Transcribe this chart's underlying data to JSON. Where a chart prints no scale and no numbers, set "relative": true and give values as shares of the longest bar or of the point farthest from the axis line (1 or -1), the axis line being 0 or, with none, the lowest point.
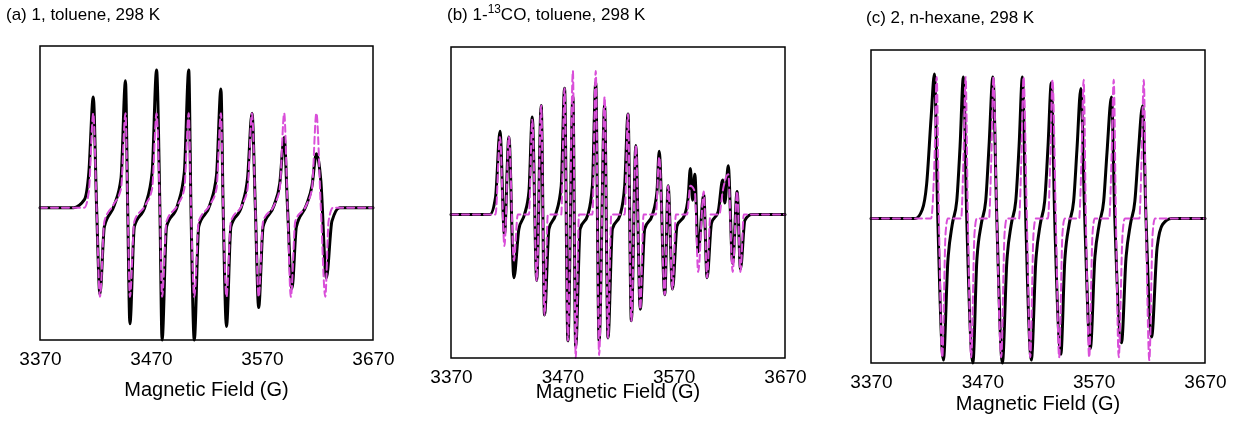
{
  "chart_data": [
    {
      "type": "line",
      "title": "(a) 1, toluene, 298 K",
      "xlabel": "Magnetic Field (G)",
      "relative": true,
      "xlim": [
        3370,
        3670
      ],
      "xticks": [
        3370,
        3470,
        3570,
        3670
      ],
      "tick_labels": "x",
      "series": [
        {
          "color": "#000000",
          "line_style": "solid",
          "x": [
            3370,
            3400,
            3410,
            3414,
            3418,
            3421,
            3424,
            3428,
            3437,
            3443,
            3447,
            3449,
            3451,
            3455,
            3465,
            3471,
            3475,
            3478,
            3480,
            3484,
            3494,
            3500,
            3504,
            3506,
            3509,
            3513,
            3523,
            3529,
            3533,
            3535,
            3538,
            3542,
            3552,
            3557,
            3561,
            3564,
            3567,
            3571,
            3581,
            3586,
            3590,
            3593,
            3597,
            3601,
            3610,
            3615,
            3619,
            3623,
            3628,
            3633,
            3640,
            3670
          ],
          "values": [
            0.49,
            0.49,
            0.52,
            0.62,
            0.9,
            0.49,
            0.17,
            0.42,
            0.5,
            0.6,
            0.96,
            0.49,
            0.06,
            0.42,
            0.5,
            0.62,
            1,
            0.49,
            0,
            0.42,
            0.5,
            0.62,
            1,
            0.49,
            0,
            0.42,
            0.5,
            0.61,
            0.93,
            0.49,
            0.05,
            0.42,
            0.5,
            0.6,
            0.84,
            0.49,
            0.12,
            0.42,
            0.5,
            0.58,
            0.75,
            0.49,
            0.19,
            0.42,
            0.5,
            0.57,
            0.69,
            0.59,
            0.23,
            0.44,
            0.49,
            0.49
          ]
        },
        {
          "color": "#d94fd9",
          "line_style": "dashed",
          "x": [
            3370,
            3410,
            3414,
            3418,
            3421,
            3424,
            3428,
            3436,
            3443,
            3447,
            3449,
            3451,
            3455,
            3465,
            3471,
            3475,
            3478,
            3480,
            3484,
            3494,
            3500,
            3504,
            3506,
            3509,
            3513,
            3523,
            3529,
            3533,
            3535,
            3538,
            3542,
            3552,
            3557,
            3561,
            3564,
            3567,
            3571,
            3581,
            3586,
            3590,
            3593,
            3596,
            3600,
            3610,
            3615,
            3619,
            3623,
            3627,
            3630,
            3634,
            3670
          ],
          "values": [
            0.49,
            0.49,
            0.55,
            0.84,
            0.49,
            0.16,
            0.44,
            0.5,
            0.56,
            0.84,
            0.49,
            0.16,
            0.44,
            0.5,
            0.56,
            0.84,
            0.49,
            0.16,
            0.44,
            0.5,
            0.56,
            0.84,
            0.49,
            0.16,
            0.44,
            0.5,
            0.56,
            0.84,
            0.49,
            0.16,
            0.44,
            0.5,
            0.56,
            0.84,
            0.49,
            0.16,
            0.44,
            0.5,
            0.56,
            0.84,
            0.49,
            0.16,
            0.44,
            0.5,
            0.56,
            0.84,
            0.49,
            0.16,
            0.44,
            0.49,
            0.49
          ]
        }
      ]
    },
    {
      "type": "line",
      "title": "(b) 1-$^{13}$CO, toluene, 298 K",
      "xlabel": "Magnetic Field (G)",
      "relative": true,
      "xlim": [
        3370,
        3670
      ],
      "xticks": [
        3370,
        3470,
        3570,
        3670
      ],
      "tick_labels": "x",
      "series": [
        {
          "color": "#000000",
          "line_style": "solid",
          "x": [
            3370,
            3405,
            3410,
            3414,
            3418,
            3422,
            3426.5,
            3431,
            3436,
            3440,
            3443,
            3447,
            3451,
            3454,
            3458,
            3464,
            3469,
            3472,
            3475,
            3479.5,
            3482,
            3486,
            3493,
            3497,
            3500,
            3503,
            3508,
            3511,
            3515,
            3522,
            3526,
            3529,
            3532,
            3536,
            3540,
            3544,
            3551,
            3555,
            3557,
            3562,
            3565,
            3569,
            3573,
            3580,
            3583,
            3585,
            3587,
            3589,
            3592,
            3597,
            3600,
            3604,
            3610,
            3614,
            3616,
            3619,
            3623,
            3627,
            3630,
            3634,
            3640,
            3670
          ],
          "values": [
            0.5,
            0.5,
            0.56,
            0.79,
            0.43,
            0.77,
            0.28,
            0.45,
            0.5,
            0.58,
            0.84,
            0.27,
            0.88,
            0.15,
            0.45,
            0.5,
            0.6,
            0.94,
            0.06,
            0.91,
            0.04,
            0.45,
            0.5,
            0.6,
            0.96,
            0.06,
            0.88,
            0.07,
            0.45,
            0.5,
            0.6,
            0.85,
            0.13,
            0.74,
            0.17,
            0.45,
            0.5,
            0.58,
            0.72,
            0.22,
            0.6,
            0.24,
            0.46,
            0.5,
            0.56,
            0.66,
            0.55,
            0.64,
            0.37,
            0.57,
            0.28,
            0.47,
            0.51,
            0.62,
            0.54,
            0.67,
            0.33,
            0.58,
            0.31,
            0.48,
            0.5,
            0.5
          ]
        },
        {
          "color": "#d94fd9",
          "line_style": "dashed",
          "x": [
            3370,
            3410,
            3414,
            3418,
            3422,
            3426.5,
            3430,
            3440,
            3443,
            3447,
            3451,
            3454,
            3457,
            3469,
            3472,
            3475,
            3479.5,
            3482,
            3485,
            3497,
            3500,
            3503,
            3508,
            3511,
            3514,
            3526,
            3529,
            3532,
            3536,
            3540,
            3543,
            3554,
            3557,
            3562,
            3565,
            3569,
            3572,
            3582,
            3585,
            3589,
            3592,
            3597,
            3600,
            3603,
            3611,
            3614,
            3619,
            3623,
            3627,
            3630,
            3633,
            3670
          ],
          "values": [
            0.5,
            0.5,
            0.77,
            0.39,
            0.77,
            0.34,
            0.5,
            0.5,
            0.83,
            0.27,
            0.88,
            0.15,
            0.5,
            0.5,
            0.94,
            0.06,
            1,
            0,
            0.5,
            0.5,
            1,
            0.01,
            0.91,
            0.07,
            0.5,
            0.5,
            0.85,
            0.13,
            0.74,
            0.17,
            0.5,
            0.5,
            0.7,
            0.22,
            0.6,
            0.24,
            0.5,
            0.5,
            0.6,
            0.58,
            0.3,
            0.58,
            0.28,
            0.5,
            0.5,
            0.58,
            0.64,
            0.3,
            0.58,
            0.3,
            0.5,
            0.5
          ]
        }
      ]
    },
    {
      "type": "line",
      "title": "(c) 2, n-hexane, 298 K",
      "xlabel": "Magnetic Field (G)",
      "relative": true,
      "xlim": [
        3370,
        3670
      ],
      "xticks": [
        3370,
        3470,
        3570,
        3670
      ],
      "tick_labels": "x",
      "series": [
        {
          "color": "#000000",
          "line_style": "solid",
          "x": [
            3370,
            3410,
            3416,
            3420,
            3424,
            3427,
            3430,
            3435,
            3439,
            3443,
            3447,
            3450,
            3453,
            3456,
            3461.5,
            3465,
            3469,
            3473,
            3476,
            3479.5,
            3483,
            3488,
            3492,
            3496,
            3500,
            3503,
            3506,
            3509,
            3514,
            3518,
            3522,
            3526,
            3529,
            3532,
            3535,
            3540.5,
            3544,
            3548,
            3552,
            3555,
            3558.5,
            3562,
            3567,
            3571,
            3575,
            3579,
            3582,
            3586,
            3589,
            3595,
            3599,
            3603,
            3607,
            3610,
            3614,
            3617,
            3622,
            3627,
            3632,
            3640,
            3670
          ],
          "values": [
            0.5,
            0.5,
            0.53,
            0.62,
            0.85,
            1,
            0.5,
            0.01,
            0.35,
            0.48,
            0.56,
            0.75,
            0.99,
            0.5,
            0,
            0.35,
            0.48,
            0.56,
            0.75,
            0.99,
            0.5,
            0,
            0.35,
            0.48,
            0.56,
            0.75,
            0.99,
            0.5,
            0.01,
            0.35,
            0.48,
            0.56,
            0.75,
            0.97,
            0.5,
            0.03,
            0.35,
            0.48,
            0.56,
            0.74,
            0.95,
            0.5,
            0.05,
            0.36,
            0.48,
            0.56,
            0.73,
            0.92,
            0.5,
            0.07,
            0.36,
            0.48,
            0.56,
            0.72,
            0.89,
            0.5,
            0.09,
            0.4,
            0.48,
            0.5,
            0.5
          ]
        },
        {
          "color": "#d94fd9",
          "line_style": "dashed",
          "x": [
            3370,
            3424,
            3427,
            3429,
            3431,
            3434,
            3437,
            3439,
            3451,
            3453,
            3455,
            3457,
            3460,
            3463,
            3465,
            3476,
            3478,
            3480,
            3483,
            3487,
            3490,
            3492,
            3503,
            3505,
            3507,
            3510,
            3513,
            3516,
            3518,
            3529,
            3531,
            3533,
            3536,
            3539,
            3542,
            3544,
            3557,
            3559,
            3561,
            3563,
            3566,
            3569,
            3571,
            3584,
            3586,
            3588,
            3590,
            3592.5,
            3596,
            3598,
            3611,
            3613,
            3615,
            3617,
            3620,
            3623,
            3625,
            3670
          ],
          "values": [
            0.5,
            0.5,
            0.7,
            0.99,
            0.5,
            0.02,
            0.45,
            0.5,
            0.5,
            0.7,
            0.99,
            0.5,
            0.02,
            0.45,
            0.5,
            0.5,
            0.7,
            0.99,
            0.5,
            0.02,
            0.45,
            0.5,
            0.5,
            0.7,
            0.99,
            0.5,
            0.02,
            0.45,
            0.5,
            0.5,
            0.7,
            0.98,
            0.5,
            0.02,
            0.45,
            0.5,
            0.5,
            0.7,
            0.98,
            0.5,
            0.02,
            0.45,
            0.5,
            0.5,
            0.7,
            0.98,
            0.5,
            0.02,
            0.45,
            0.5,
            0.5,
            0.7,
            0.98,
            0.5,
            0.01,
            0.45,
            0.5,
            0.5
          ]
        }
      ]
    }
  ]
}
